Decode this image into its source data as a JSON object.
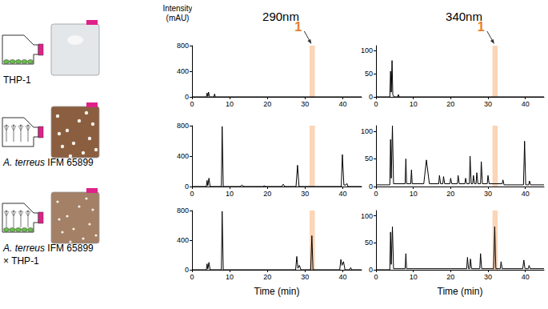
{
  "chart_data": [
    {
      "type": "line",
      "title": "290nm",
      "color": "#000000",
      "xlim": [
        0,
        45
      ],
      "xticks": [
        0,
        10,
        20,
        30,
        40
      ],
      "ylim": [
        0,
        800
      ],
      "yticks": [
        0,
        400,
        800
      ],
      "grid": false,
      "highlight": {
        "range": [
          31.2,
          32.6
        ],
        "color": "#fad5b8"
      },
      "annotation": {
        "text": "1",
        "x": 31.9,
        "color": "#e87d2c"
      },
      "x": [
        0,
        3.8,
        4.0,
        4.2,
        4.4,
        4.6,
        4.8,
        5.8,
        6.0,
        6.2,
        45
      ],
      "values": [
        0,
        0,
        60,
        5,
        75,
        5,
        0,
        0,
        45,
        0,
        0
      ]
    },
    {
      "type": "line",
      "title": "340nm",
      "color": "#000000",
      "xlim": [
        0,
        45
      ],
      "xticks": [
        0,
        10,
        20,
        30,
        40
      ],
      "ylim": [
        0,
        110
      ],
      "yticks": [
        0,
        50,
        100
      ],
      "grid": false,
      "highlight": {
        "range": [
          31.2,
          32.6
        ],
        "color": "#fad5b8"
      },
      "annotation": {
        "text": "1",
        "x": 31.9,
        "color": "#e87d2c"
      },
      "x": [
        0,
        3.7,
        3.9,
        4.1,
        4.3,
        4.5,
        4.8,
        5.8,
        6.0,
        6.2,
        45
      ],
      "values": [
        0,
        0,
        55,
        10,
        78,
        5,
        0,
        0,
        5,
        0,
        0
      ]
    },
    {
      "type": "line",
      "color": "#000000",
      "xlim": [
        0,
        45
      ],
      "xticks": [
        0,
        10,
        20,
        30,
        40
      ],
      "ylim": [
        0,
        800
      ],
      "yticks": [
        0,
        400,
        800
      ],
      "grid": false,
      "highlight": {
        "range": [
          31.2,
          32.6
        ],
        "color": "#fad5b8"
      },
      "x": [
        0,
        3.8,
        4.0,
        4.2,
        4.5,
        4.8,
        7.8,
        8.0,
        8.3,
        12.8,
        13.2,
        13.8,
        18.8,
        19.2,
        19.6,
        23.8,
        24.2,
        24.6,
        27.6,
        28.0,
        28.4,
        39.6,
        39.9,
        40.3,
        40.8,
        41.1,
        41.4,
        45
      ],
      "values": [
        0,
        0,
        80,
        10,
        110,
        0,
        0,
        790,
        0,
        0,
        20,
        0,
        0,
        10,
        0,
        0,
        30,
        0,
        0,
        280,
        0,
        0,
        420,
        20,
        20,
        40,
        0,
        0
      ]
    },
    {
      "type": "line",
      "color": "#000000",
      "xlim": [
        0,
        45
      ],
      "xticks": [
        0,
        10,
        20,
        30,
        40
      ],
      "ylim": [
        0,
        110
      ],
      "yticks": [
        0,
        50,
        100
      ],
      "grid": false,
      "highlight": {
        "range": [
          31.2,
          32.6
        ],
        "color": "#fad5b8"
      },
      "x": [
        0,
        3.7,
        3.9,
        4.1,
        4.4,
        4.7,
        7.8,
        8.0,
        8.2,
        9.3,
        9.5,
        9.7,
        12.8,
        13.5,
        14.3,
        16.8,
        17.0,
        17.3,
        17.9,
        18.1,
        18.4,
        19.8,
        20.0,
        20.3,
        21.8,
        22.0,
        22.3,
        23.8,
        24.0,
        24.3,
        25.0,
        25.2,
        25.5,
        25.9,
        26.1,
        26.4,
        26.8,
        27.0,
        27.3,
        28.0,
        28.2,
        28.5,
        29.8,
        30.0,
        30.3,
        33.8,
        34.0,
        34.3,
        39.5,
        39.8,
        40.1,
        40.9,
        41.1,
        41.4,
        45
      ],
      "values": [
        3,
        3,
        85,
        15,
        110,
        5,
        5,
        50,
        5,
        5,
        30,
        5,
        5,
        48,
        5,
        5,
        20,
        5,
        5,
        18,
        5,
        5,
        15,
        5,
        5,
        20,
        5,
        5,
        15,
        5,
        5,
        55,
        5,
        5,
        20,
        5,
        5,
        25,
        5,
        5,
        45,
        5,
        5,
        20,
        5,
        5,
        12,
        3,
        3,
        82,
        3,
        3,
        10,
        3,
        3
      ]
    },
    {
      "type": "line",
      "xlabel": "Time (min)",
      "color": "#000000",
      "xlim": [
        0,
        45
      ],
      "xticks": [
        0,
        10,
        20,
        30,
        40
      ],
      "ylim": [
        0,
        800
      ],
      "yticks": [
        0,
        400,
        800
      ],
      "grid": false,
      "highlight": {
        "range": [
          31.2,
          32.6
        ],
        "color": "#fad5b8"
      },
      "x": [
        0,
        3.8,
        4.0,
        4.2,
        4.5,
        4.8,
        7.8,
        8.0,
        8.3,
        27.5,
        27.8,
        28.1,
        28.5,
        28.9,
        31.5,
        31.8,
        32.1,
        39.2,
        39.5,
        39.8,
        40.2,
        40.6,
        41.8,
        42.1,
        42.4,
        45
      ],
      "values": [
        0,
        0,
        80,
        10,
        100,
        0,
        0,
        790,
        0,
        0,
        180,
        20,
        60,
        0,
        0,
        460,
        0,
        0,
        140,
        60,
        110,
        0,
        0,
        30,
        0,
        0
      ]
    },
    {
      "type": "line",
      "xlabel": "Time (min)",
      "color": "#000000",
      "xlim": [
        0,
        45
      ],
      "xticks": [
        0,
        10,
        20,
        30,
        40
      ],
      "ylim": [
        0,
        110
      ],
      "yticks": [
        0,
        50,
        100
      ],
      "grid": false,
      "highlight": {
        "range": [
          31.2,
          32.6
        ],
        "color": "#fad5b8"
      },
      "x": [
        0,
        3.7,
        3.9,
        4.1,
        4.4,
        4.7,
        7.8,
        8.0,
        8.2,
        24.3,
        24.5,
        24.8,
        25.1,
        25.3,
        25.6,
        27.8,
        28.0,
        28.3,
        31.5,
        31.8,
        32.1,
        33.3,
        33.5,
        33.8,
        39.3,
        39.6,
        39.9,
        40.8,
        41.0,
        41.3,
        45
      ],
      "values": [
        0,
        0,
        70,
        10,
        80,
        2,
        2,
        30,
        2,
        2,
        23,
        2,
        2,
        20,
        2,
        2,
        30,
        2,
        2,
        80,
        2,
        2,
        15,
        2,
        2,
        18,
        2,
        2,
        8,
        2,
        2
      ]
    }
  ],
  "y_axis_title": [
    "Intensity",
    "(mAU)"
  ],
  "rows": [
    {
      "label": [
        "THP-1"
      ]
    },
    {
      "label": [
        "A. terreus IFM 65899"
      ]
    },
    {
      "label": [
        "A. terreus IFM 65899",
        "× THP-1"
      ]
    }
  ]
}
